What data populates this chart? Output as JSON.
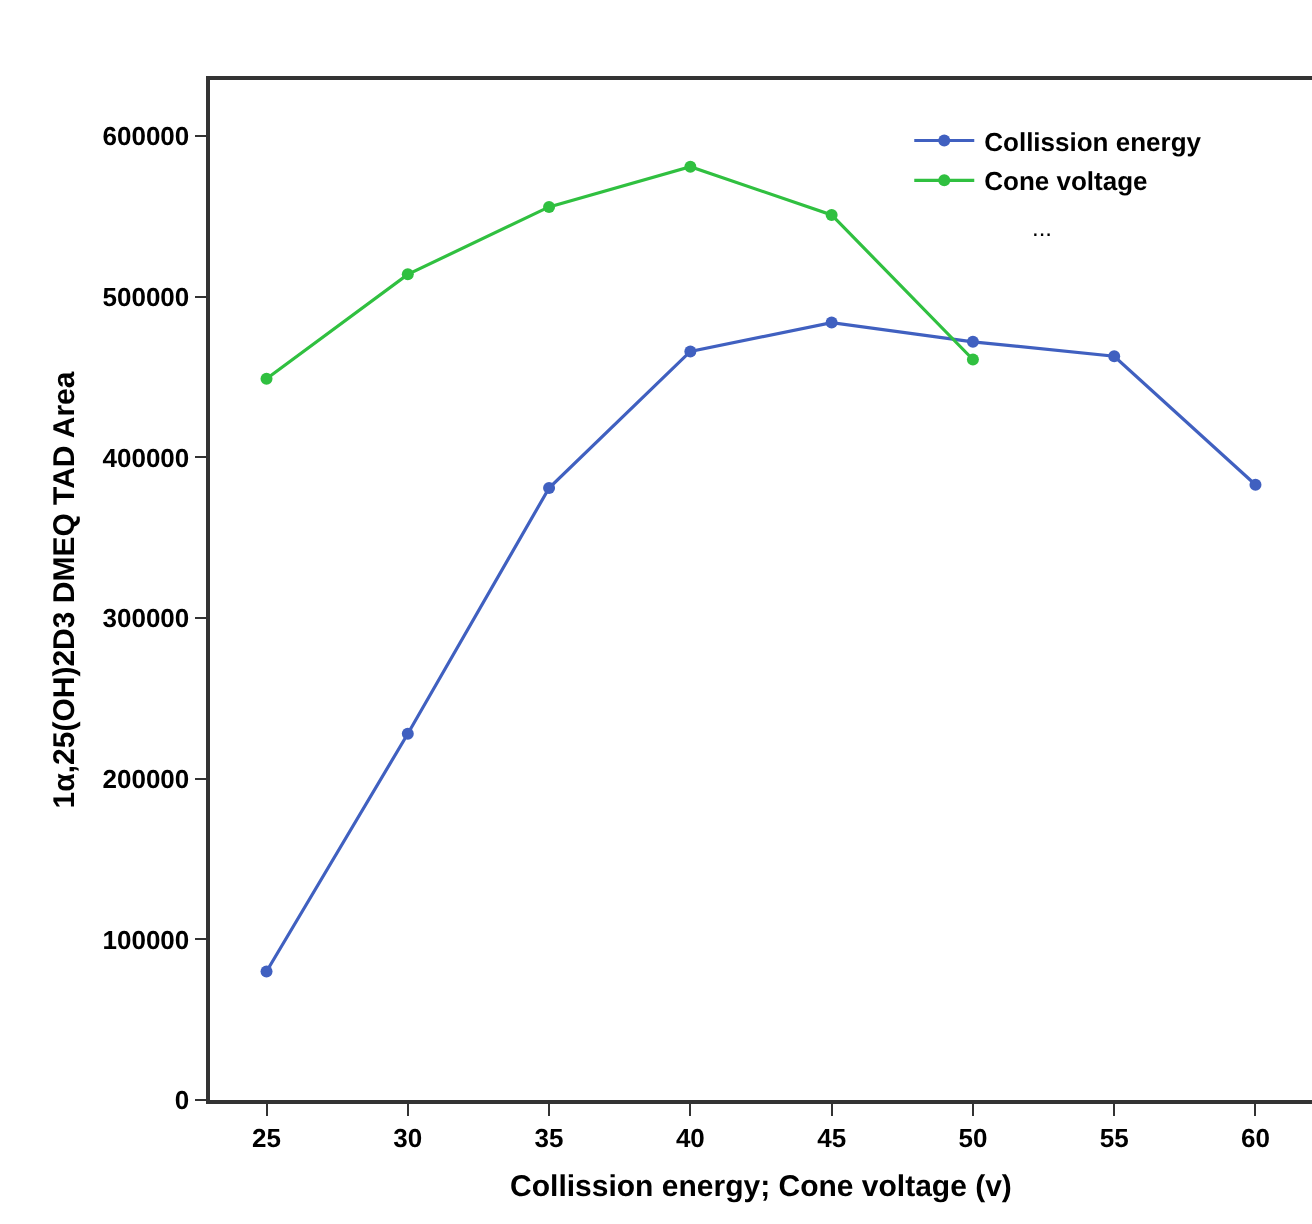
{
  "chart_data": {
    "type": "line",
    "xlabel": "Collission energy; Cone voltage (v)",
    "ylabel": "1α,25(OH)2D3 DMEQ TAD Area",
    "x": [
      25,
      30,
      35,
      40,
      45,
      50,
      55,
      60
    ],
    "series": [
      {
        "name": "Collission energy",
        "color": "#4060c0",
        "values": [
          80000,
          228000,
          381000,
          466000,
          484000,
          472000,
          463000,
          383000
        ]
      },
      {
        "name": "Cone voltage",
        "color": "#30c040",
        "values": [
          449000,
          514000,
          556000,
          581000,
          551000,
          461000,
          null,
          null
        ]
      }
    ],
    "annotations": [
      "..."
    ],
    "xlim": [
      23,
      62
    ],
    "xticks": [
      25,
      30,
      35,
      40,
      45,
      50,
      55,
      60
    ],
    "ylim": [
      0,
      635000
    ],
    "yticks": [
      0,
      100000,
      200000,
      300000,
      400000,
      500000,
      600000
    ],
    "grid": false,
    "legend": "top right",
    "marker": "circle",
    "line_style": "solid"
  }
}
